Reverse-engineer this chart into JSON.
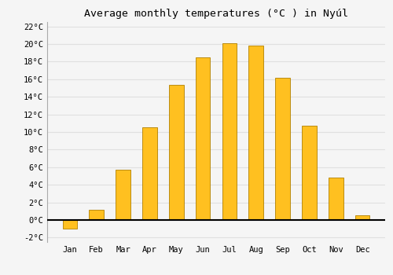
{
  "title": "Average monthly temperatures (°C ) in Nyúl",
  "months": [
    "Jan",
    "Feb",
    "Mar",
    "Apr",
    "May",
    "Jun",
    "Jul",
    "Aug",
    "Sep",
    "Oct",
    "Nov",
    "Dec"
  ],
  "values": [
    -1.0,
    1.2,
    5.7,
    10.5,
    15.4,
    18.5,
    20.1,
    19.8,
    16.2,
    10.7,
    4.8,
    0.5
  ],
  "bar_color": "#FFC020",
  "bar_edge_color": "#B08000",
  "background_color": "#f5f5f5",
  "plot_bg_color": "#f5f5f5",
  "ylim": [
    -2.5,
    22.5
  ],
  "yticks": [
    -2,
    0,
    2,
    4,
    6,
    8,
    10,
    12,
    14,
    16,
    18,
    20,
    22
  ],
  "grid_color": "#e0e0e0",
  "title_fontsize": 9.5,
  "tick_fontsize": 7.5,
  "bar_width": 0.55
}
